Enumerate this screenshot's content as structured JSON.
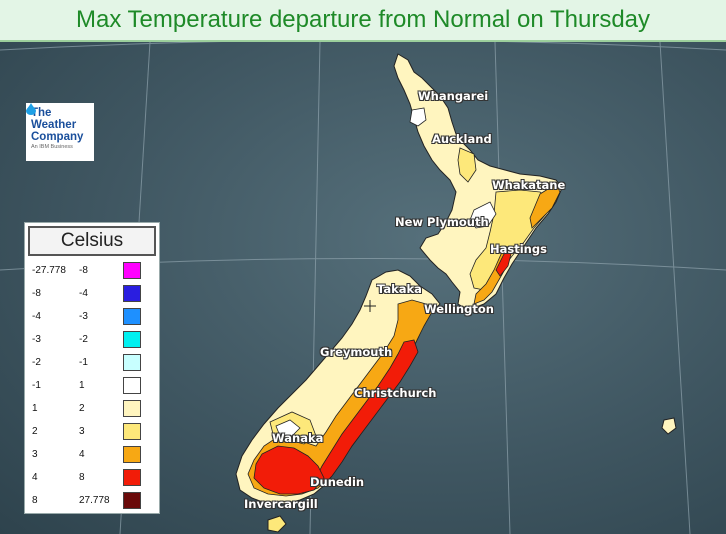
{
  "title": "Max Temperature departure from Normal on Thursday",
  "logo": {
    "line1": "The",
    "line2": "Weather",
    "line3": "Company",
    "sub": "An IBM Business"
  },
  "cities": {
    "whangarei": "Whangarei",
    "auckland": "Auckland",
    "whakatane": "Whakatane",
    "new_plymouth": "New Plymouth",
    "hastings": "Hastings",
    "takaka": "Takaka",
    "wellington": "Wellington",
    "greymouth": "Greymouth",
    "christchurch": "Christchurch",
    "wanaka": "Wanaka",
    "dunedin": "Dunedin",
    "invercargill": "Invercargill"
  },
  "legend": {
    "title": "Celsius",
    "rows": [
      {
        "min": "-27.778",
        "max": "-8",
        "color": "#ff00ff"
      },
      {
        "min": "-8",
        "max": "-4",
        "color": "#2a1ee0"
      },
      {
        "min": "-4",
        "max": "-3",
        "color": "#1e90ff"
      },
      {
        "min": "-3",
        "max": "-2",
        "color": "#00f0f0"
      },
      {
        "min": "-2",
        "max": "-1",
        "color": "#c8ffff"
      },
      {
        "min": "-1",
        "max": "1",
        "color": "#ffffff"
      },
      {
        "min": "1",
        "max": "2",
        "color": "#fff5bf"
      },
      {
        "min": "2",
        "max": "3",
        "color": "#fde87a"
      },
      {
        "min": "3",
        "max": "4",
        "color": "#f7a814"
      },
      {
        "min": "4",
        "max": "8",
        "color": "#f21c08"
      },
      {
        "min": "8",
        "max": "27.778",
        "color": "#6a0a0a"
      }
    ]
  },
  "colors": {
    "land_base": "#fff5bf",
    "land_warm": "#fde87a",
    "land_hot": "#f7a814",
    "land_very_hot": "#f21c08",
    "land_neutral": "#ffffff",
    "ocean": "#3f5661",
    "title_text": "#1e8a28"
  }
}
